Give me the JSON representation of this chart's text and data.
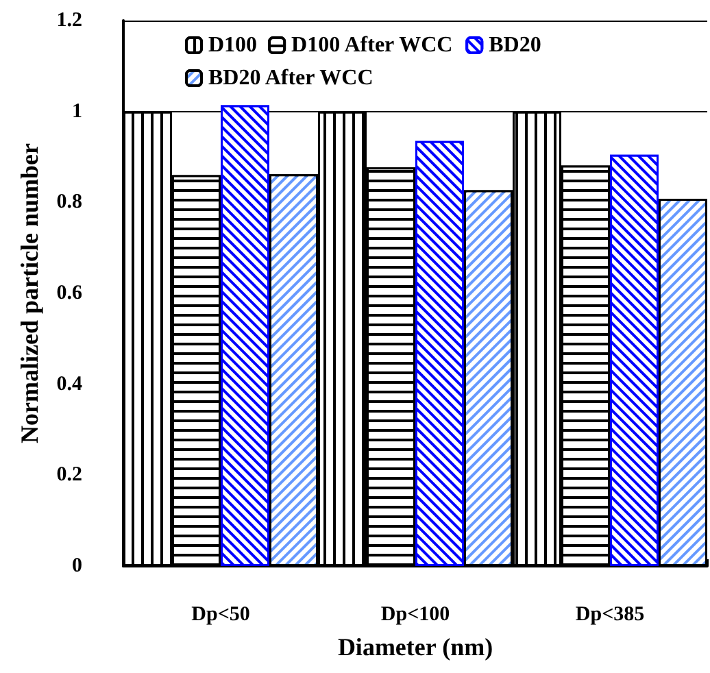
{
  "chart_data": {
    "type": "bar",
    "xlabel": "Diameter (nm)",
    "ylabel": "Normalized particle number",
    "categories": [
      "Dp<50",
      "Dp<100",
      "Dp<385"
    ],
    "series": [
      {
        "name": "D100",
        "color": "#000000",
        "values": [
          1.0,
          1.0,
          1.0
        ]
      },
      {
        "name": "D100 After WCC",
        "color": "#000000",
        "values": [
          0.86,
          0.877,
          0.881
        ]
      },
      {
        "name": "BD20",
        "color": "#0000ff",
        "values": [
          1.014,
          0.935,
          0.905
        ]
      },
      {
        "name": "BD20 After WCC",
        "color": "#6699ff",
        "values": [
          0.862,
          0.827,
          0.808
        ]
      }
    ],
    "ylim": [
      0,
      1.2
    ],
    "yticks": [
      0,
      0.2,
      0.4,
      0.6,
      0.8,
      1,
      1.2
    ],
    "grid": "y",
    "legend": "top"
  }
}
